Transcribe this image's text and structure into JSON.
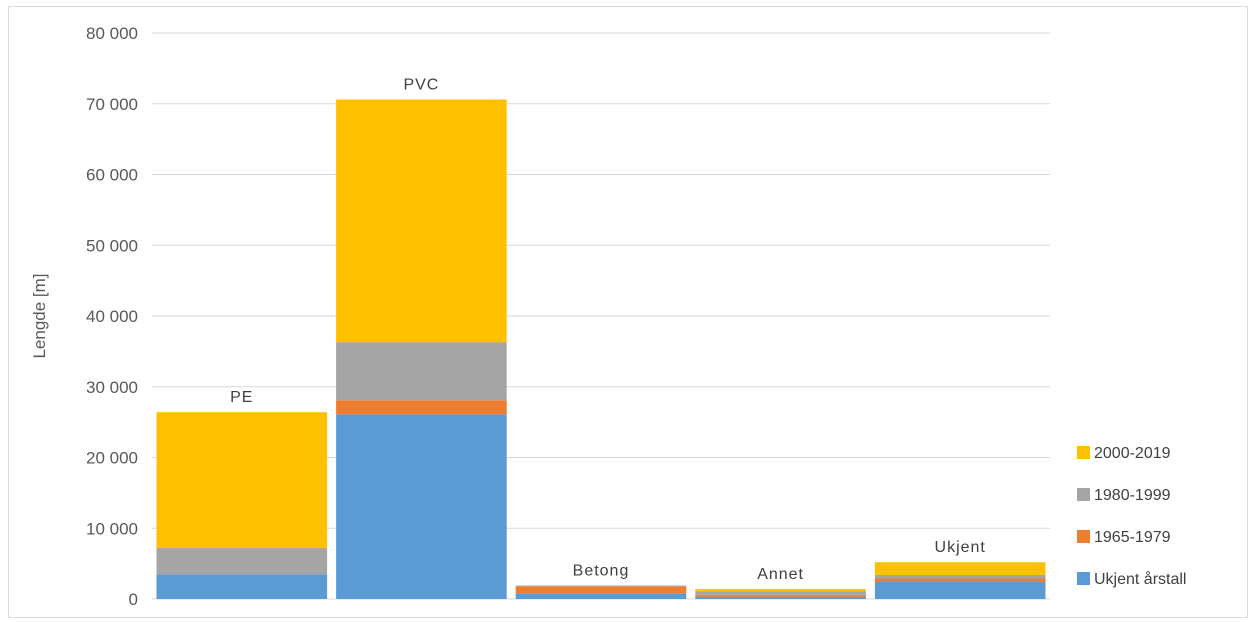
{
  "chart_data": {
    "type": "bar",
    "stacked": true,
    "ylabel": "Lengde [m]",
    "ylim": [
      0,
      80000
    ],
    "yticks": [
      0,
      10000,
      20000,
      30000,
      40000,
      50000,
      60000,
      70000,
      80000
    ],
    "ytick_labels": [
      "0",
      "10 000",
      "20 000",
      "30 000",
      "40 000",
      "50 000",
      "60 000",
      "70 000",
      "80 000"
    ],
    "grid": true,
    "legend_position": "right",
    "categories": [
      "PE",
      "PVC",
      "Betong",
      "Annet",
      "Ukjent"
    ],
    "series": [
      {
        "name": "Ukjent årstall",
        "color": "#5B9BD5",
        "values": [
          3500,
          26100,
          800,
          300,
          2400
        ]
      },
      {
        "name": "1965-1979",
        "color": "#ED7D31",
        "values": [
          0,
          2000,
          1000,
          300,
          500
        ]
      },
      {
        "name": "1980-1999",
        "color": "#A5A5A5",
        "values": [
          3700,
          8200,
          100,
          500,
          500
        ]
      },
      {
        "name": "2000-2019",
        "color": "#FFC000",
        "values": [
          19200,
          34300,
          0,
          300,
          1800
        ]
      }
    ],
    "legend_order": [
      "2000-2019",
      "1980-1999",
      "1965-1979",
      "Ukjent årstall"
    ]
  }
}
